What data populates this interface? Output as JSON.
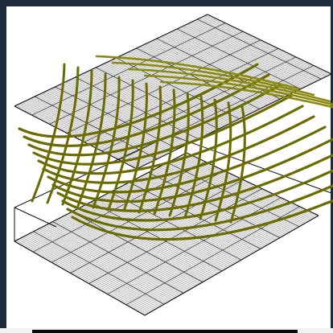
{
  "colors": {
    "background": "#ffffff",
    "grid_line": "#3a3a3a",
    "grid_line_light": "#7a7a7a",
    "grid_outline": "#111111",
    "beam": "#6b6b00",
    "beam_highlight": "#8a8a10",
    "window_edge": "#1c2a3a",
    "window_bottom": "#0a0a0a"
  },
  "scene": {
    "layers": [
      "top-mesh",
      "beam-lattice",
      "bottom-mesh"
    ],
    "icons": [
      "grid-mesh-icon",
      "beam-lattice-icon"
    ]
  }
}
